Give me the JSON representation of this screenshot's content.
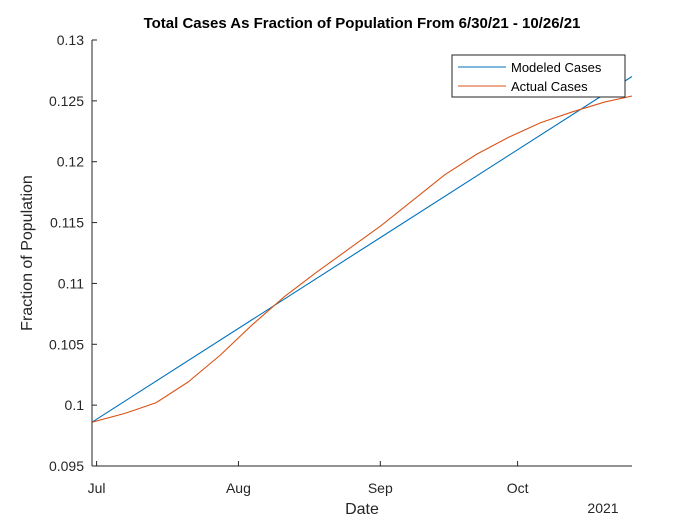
{
  "chart_data": {
    "type": "line",
    "title": "Total Cases As Fraction of Population From 6/30/21 - 10/26/21",
    "xlabel": "Date",
    "ylabel": "Fraction of Population",
    "year_label": "2021",
    "xlim": [
      "2021-06-30",
      "2021-10-26"
    ],
    "ylim": [
      0.095,
      0.13
    ],
    "x_ticks": [
      {
        "date": "2021-07-01",
        "label": "Jul"
      },
      {
        "date": "2021-08-01",
        "label": "Aug"
      },
      {
        "date": "2021-09-01",
        "label": "Sep"
      },
      {
        "date": "2021-10-01",
        "label": "Oct"
      }
    ],
    "y_ticks": [
      {
        "value": 0.095,
        "label": "0.095"
      },
      {
        "value": 0.1,
        "label": "0.1"
      },
      {
        "value": 0.105,
        "label": "0.105"
      },
      {
        "value": 0.11,
        "label": "0.11"
      },
      {
        "value": 0.115,
        "label": "0.115"
      },
      {
        "value": 0.12,
        "label": "0.12"
      },
      {
        "value": 0.125,
        "label": "0.125"
      },
      {
        "value": 0.13,
        "label": "0.13"
      }
    ],
    "grid": false,
    "legend_position": "top-right",
    "series": [
      {
        "name": "Modeled Cases",
        "color": "#0072BD",
        "points": [
          {
            "x": "2021-06-30",
            "y": 0.0986
          },
          {
            "x": "2021-10-26",
            "y": 0.127
          }
        ]
      },
      {
        "name": "Actual Cases",
        "color": "#D95319",
        "points": [
          {
            "x": "2021-06-30",
            "y": 0.0986
          },
          {
            "x": "2021-07-07",
            "y": 0.0993
          },
          {
            "x": "2021-07-14",
            "y": 0.1002
          },
          {
            "x": "2021-07-21",
            "y": 0.1019
          },
          {
            "x": "2021-07-28",
            "y": 0.1041
          },
          {
            "x": "2021-08-04",
            "y": 0.1066
          },
          {
            "x": "2021-08-11",
            "y": 0.1089
          },
          {
            "x": "2021-08-18",
            "y": 0.1109
          },
          {
            "x": "2021-08-25",
            "y": 0.1128
          },
          {
            "x": "2021-09-01",
            "y": 0.1147
          },
          {
            "x": "2021-09-08",
            "y": 0.1168
          },
          {
            "x": "2021-09-15",
            "y": 0.1189
          },
          {
            "x": "2021-09-22",
            "y": 0.1206
          },
          {
            "x": "2021-09-29",
            "y": 0.122
          },
          {
            "x": "2021-10-06",
            "y": 0.1232
          },
          {
            "x": "2021-10-13",
            "y": 0.1241
          },
          {
            "x": "2021-10-20",
            "y": 0.1249
          },
          {
            "x": "2021-10-26",
            "y": 0.1254
          }
        ]
      }
    ]
  }
}
